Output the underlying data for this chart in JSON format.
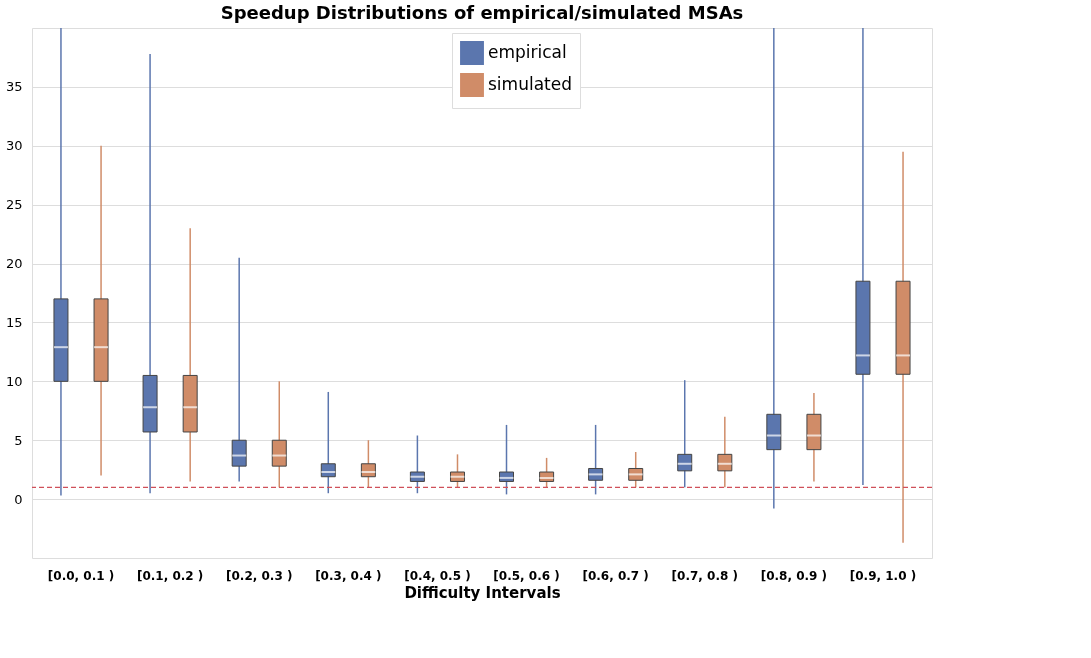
{
  "chart_data": {
    "type": "box",
    "title": "Speedup Distributions of empirical/simulated MSAs",
    "xlabel": "Difficulty Intervals",
    "categories": [
      "[0.0, 0.1 )",
      "[0.1, 0.2 )",
      "[0.2, 0.3 )",
      "[0.3, 0.4 )",
      "[0.4, 0.5 )",
      "[0.5, 0.6 )",
      "[0.6, 0.7 )",
      "[0.7, 0.8 )",
      "[0.8, 0.9 )",
      "[0.9, 1.0 )"
    ],
    "series": [
      {
        "name": "empirical",
        "color": "#5b76ae",
        "boxes": [
          {
            "low": 0.3,
            "q1": 10,
            "median": 12.9,
            "q3": 17,
            "high": 40
          },
          {
            "low": 0.5,
            "q1": 5.7,
            "median": 7.8,
            "q3": 10.5,
            "high": 37.8
          },
          {
            "low": 1.5,
            "q1": 2.8,
            "median": 3.7,
            "q3": 5,
            "high": 20.5
          },
          {
            "low": 0.5,
            "q1": 1.9,
            "median": 2.3,
            "q3": 3,
            "high": 9.1
          },
          {
            "low": 0.5,
            "q1": 1.5,
            "median": 1.9,
            "q3": 2.3,
            "high": 5.4
          },
          {
            "low": 0.4,
            "q1": 1.5,
            "median": 1.8,
            "q3": 2.3,
            "high": 6.3
          },
          {
            "low": 0.4,
            "q1": 1.6,
            "median": 2.1,
            "q3": 2.6,
            "high": 6.3
          },
          {
            "low": 1,
            "q1": 2.4,
            "median": 3,
            "q3": 3.8,
            "high": 10.1
          },
          {
            "low": -0.8,
            "q1": 4.2,
            "median": 5.4,
            "q3": 7.2,
            "high": 40
          },
          {
            "low": 1.2,
            "q1": 10.6,
            "median": 12.2,
            "q3": 18.5,
            "high": 40
          }
        ]
      },
      {
        "name": "simulated",
        "color": "#d08c68",
        "boxes": [
          {
            "low": 2,
            "q1": 10,
            "median": 12.9,
            "q3": 17,
            "high": 30
          },
          {
            "low": 1.5,
            "q1": 5.7,
            "median": 7.8,
            "q3": 10.5,
            "high": 23
          },
          {
            "low": 1,
            "q1": 2.8,
            "median": 3.7,
            "q3": 5,
            "high": 10
          },
          {
            "low": 1,
            "q1": 1.9,
            "median": 2.3,
            "q3": 3,
            "high": 5
          },
          {
            "low": 1,
            "q1": 1.5,
            "median": 1.9,
            "q3": 2.3,
            "high": 3.8
          },
          {
            "low": 1,
            "q1": 1.5,
            "median": 1.8,
            "q3": 2.3,
            "high": 3.5
          },
          {
            "low": 1,
            "q1": 1.6,
            "median": 2.1,
            "q3": 2.6,
            "high": 4
          },
          {
            "low": 1,
            "q1": 2.4,
            "median": 3,
            "q3": 3.8,
            "high": 7
          },
          {
            "low": 1.5,
            "q1": 4.2,
            "median": 5.4,
            "q3": 7.2,
            "high": 9
          },
          {
            "low": -3.7,
            "q1": 10.6,
            "median": 12.2,
            "q3": 18.5,
            "high": 29.5
          }
        ]
      }
    ],
    "ylim": [
      -5,
      40
    ],
    "yticks": [
      0,
      5,
      10,
      15,
      20,
      25,
      30,
      35
    ],
    "grid": "y",
    "legend": "top",
    "ref_lines": [
      {
        "axis": "y",
        "value": 1,
        "color": "#d0505a",
        "line_style": "dashed"
      }
    ]
  }
}
